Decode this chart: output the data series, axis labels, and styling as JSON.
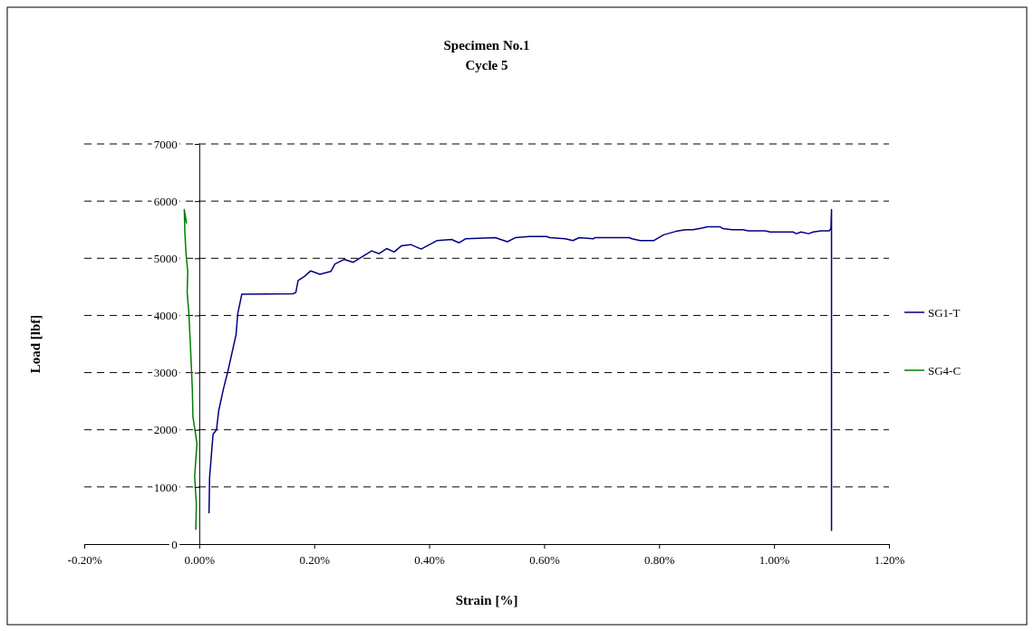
{
  "chart_data": {
    "type": "line",
    "title": "Specimen No.1",
    "subtitle": "Cycle 5",
    "xlabel": "Strain [%]",
    "ylabel": "Load [lbf]",
    "xlim": [
      -0.2,
      1.2
    ],
    "ylim": [
      0,
      7000
    ],
    "xticks": [
      {
        "value": -0.2,
        "label": "-0.20%"
      },
      {
        "value": 0,
        "label": "0.00%"
      },
      {
        "value": 0.2,
        "label": "0.20%"
      },
      {
        "value": 0.4,
        "label": "0.40%"
      },
      {
        "value": 0.6,
        "label": "0.60%"
      },
      {
        "value": 0.8,
        "label": "0.80%"
      },
      {
        "value": 1.0,
        "label": "1.00%"
      },
      {
        "value": 1.2,
        "label": "1.20%"
      }
    ],
    "yticks": [
      0,
      1000,
      2000,
      3000,
      4000,
      5000,
      6000,
      7000
    ],
    "grid": "y",
    "legend": "right",
    "marker": "none",
    "line_style": "solid",
    "series": [
      {
        "name": "SG1-T",
        "color": "#000080",
        "x": [
          0.017,
          0.018,
          0.024,
          0.03,
          0.034,
          0.042,
          0.05,
          0.058,
          0.064,
          0.067,
          0.074,
          0.163,
          0.168,
          0.172,
          0.184,
          0.194,
          0.21,
          0.229,
          0.236,
          0.252,
          0.268,
          0.284,
          0.3,
          0.313,
          0.326,
          0.339,
          0.352,
          0.368,
          0.386,
          0.414,
          0.439,
          0.452,
          0.463,
          0.515,
          0.536,
          0.55,
          0.574,
          0.604,
          0.61,
          0.637,
          0.65,
          0.661,
          0.686,
          0.688,
          0.748,
          0.753,
          0.767,
          0.791,
          0.808,
          0.829,
          0.846,
          0.859,
          0.876,
          0.884,
          0.906,
          0.911,
          0.927,
          0.946,
          0.955,
          0.985,
          0.993,
          1.033,
          1.039,
          1.047,
          1.06,
          1.068,
          1.082,
          1.096,
          1.099,
          1.1,
          1.1
        ],
        "values": [
          540,
          1160,
          1920,
          2000,
          2340,
          2710,
          3030,
          3390,
          3660,
          4030,
          4370,
          4380,
          4400,
          4610,
          4690,
          4780,
          4720,
          4770,
          4900,
          4980,
          4930,
          5030,
          5130,
          5080,
          5170,
          5110,
          5220,
          5240,
          5160,
          5310,
          5330,
          5270,
          5340,
          5360,
          5290,
          5360,
          5380,
          5380,
          5360,
          5340,
          5310,
          5360,
          5340,
          5360,
          5360,
          5340,
          5310,
          5310,
          5410,
          5470,
          5500,
          5500,
          5530,
          5550,
          5550,
          5520,
          5500,
          5500,
          5480,
          5480,
          5460,
          5460,
          5430,
          5460,
          5430,
          5460,
          5480,
          5480,
          5520,
          5850,
          230
        ]
      },
      {
        "name": "SG4-C",
        "color": "#008000",
        "x": [
          -0.006,
          -0.005,
          -0.008,
          -0.004,
          -0.011,
          -0.012,
          -0.014,
          -0.016,
          -0.018,
          -0.021,
          -0.02,
          -0.023,
          -0.025,
          -0.026,
          -0.022
        ],
        "values": [
          250,
          700,
          1180,
          1760,
          2230,
          2710,
          3180,
          3610,
          4030,
          4400,
          4770,
          5080,
          5450,
          5850,
          5610
        ]
      }
    ]
  }
}
